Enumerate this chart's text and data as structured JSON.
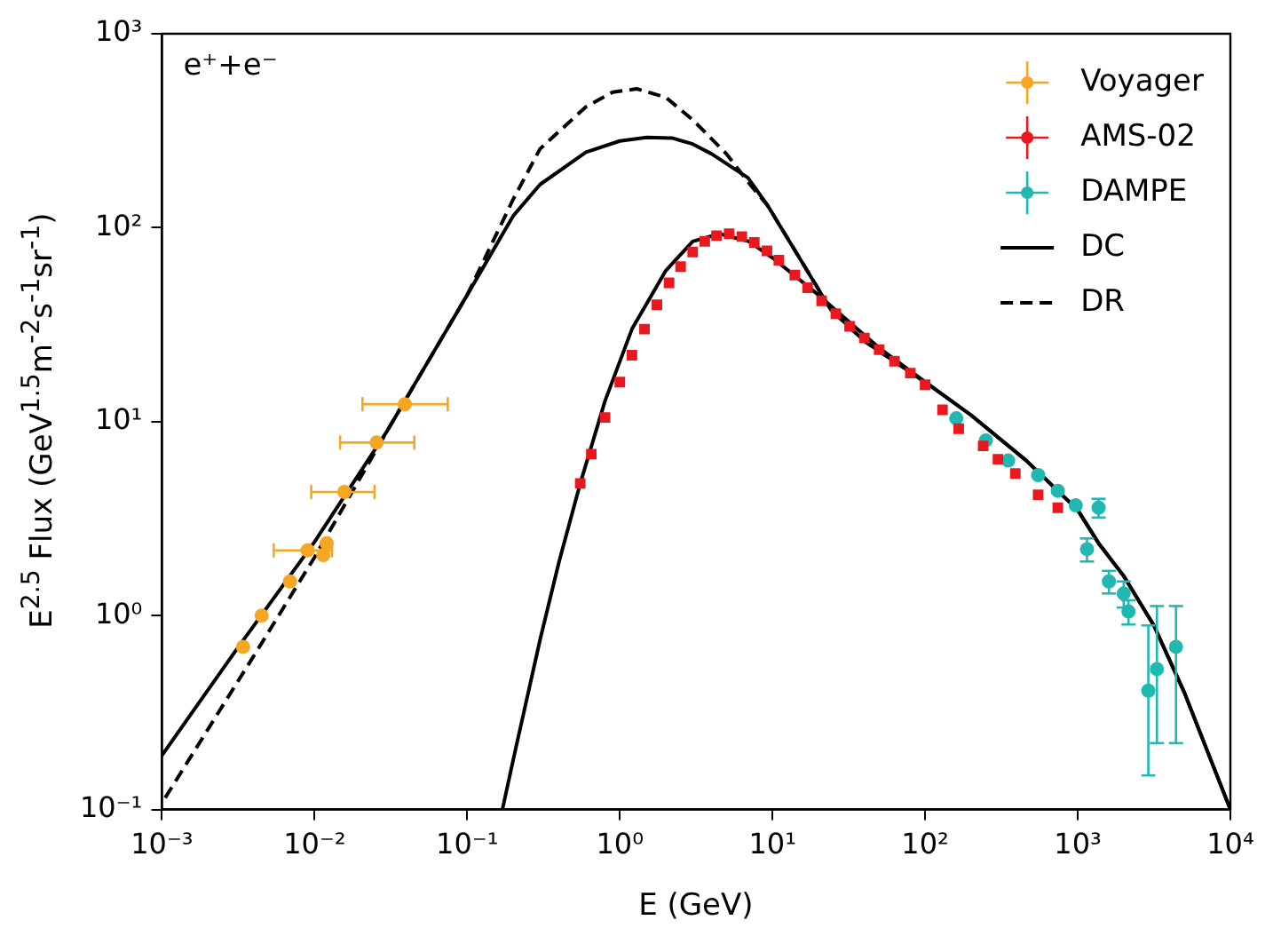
{
  "chart_data": {
    "type": "scatter",
    "xlabel": "E (GeV)",
    "ylabel": "E$^{2.5}$ Flux (GeV$^{1.5}$m$^{-2}$s$^{-1}$sr$^{-1}$)",
    "log": "xy",
    "legend": "top right",
    "annotations": [
      "e⁺+e⁻"
    ],
    "xlim": [
      0.001,
      10000
    ],
    "xticks": [
      {
        "value": 0.001,
        "label": "10⁻³"
      },
      {
        "value": 0.01,
        "label": "10⁻²"
      },
      {
        "value": 0.1,
        "label": "10⁻¹"
      },
      {
        "value": 1,
        "label": "10⁰"
      },
      {
        "value": 10,
        "label": "10¹"
      },
      {
        "value": 100,
        "label": "10²"
      },
      {
        "value": 1000,
        "label": "10³"
      },
      {
        "value": 10000,
        "label": "10⁴"
      }
    ],
    "ylim": [
      0.1,
      1000
    ],
    "yticks": [
      {
        "value": 0.1,
        "label": "10⁻¹"
      },
      {
        "value": 1,
        "label": "10⁰"
      },
      {
        "value": 10,
        "label": "10¹"
      },
      {
        "value": 100,
        "label": "10²"
      },
      {
        "value": 1000,
        "label": "10³"
      }
    ],
    "series": [
      {
        "name": "Voyager",
        "marker": "circle",
        "color": "#f5a623",
        "x": [
          0.0034,
          0.0045,
          0.0069,
          0.009,
          0.0114,
          0.012,
          0.0157,
          0.0255,
          0.039
        ],
        "values": [
          0.69,
          1.0,
          1.5,
          2.17,
          2.05,
          2.36,
          4.34,
          7.8,
          12.3
        ],
        "xerrors": [
          null,
          null,
          null,
          [
            0.0054,
            0.013
          ],
          null,
          null,
          [
            0.0095,
            0.0247
          ],
          [
            0.0147,
            0.045
          ],
          [
            0.0206,
            0.0746
          ]
        ]
      },
      {
        "name": "AMS-02",
        "marker": "square",
        "color": "#e8191e",
        "x": [
          0.55,
          0.65,
          0.8,
          1.0,
          1.2,
          1.45,
          1.75,
          2.1,
          2.5,
          3,
          3.6,
          4.3,
          5.2,
          6.3,
          7.6,
          9.2,
          11,
          14,
          17,
          21,
          26,
          32,
          40,
          50,
          63,
          80,
          100,
          130,
          166,
          240,
          300,
          390,
          550,
          740
        ],
        "values": [
          4.8,
          6.8,
          10.5,
          16,
          22,
          30,
          40,
          52,
          63,
          75,
          85,
          91,
          93,
          90,
          84,
          76,
          68,
          57,
          49,
          42,
          36,
          31,
          27,
          23.5,
          20.5,
          17.8,
          15.5,
          11.5,
          9.2,
          7.5,
          6.4,
          5.4,
          4.2,
          3.6
        ]
      },
      {
        "name": "DAMPE",
        "marker": "circle",
        "color": "#20b8b0",
        "x": [
          160,
          250,
          350,
          550,
          740,
          970,
          1150,
          1370,
          1600,
          2000,
          2150,
          2900,
          3300,
          4400
        ],
        "values": [
          10.4,
          8,
          6.3,
          5.3,
          4.4,
          3.7,
          2.2,
          3.6,
          1.5,
          1.3,
          1.05,
          0.41,
          0.53,
          0.69
        ],
        "errors": [
          null,
          null,
          null,
          null,
          null,
          null,
          [
            1.9,
            2.5
          ],
          [
            3.2,
            4.0
          ],
          [
            1.3,
            1.7
          ],
          [
            1.1,
            1.5
          ],
          [
            0.9,
            1.2
          ],
          [
            0.15,
            0.89
          ],
          [
            0.22,
            1.12
          ],
          [
            0.22,
            1.12
          ]
        ]
      },
      {
        "name": "DC",
        "type": "line",
        "line_style": "solid",
        "color": "#000000",
        "x": [
          0.001,
          0.003,
          0.01,
          0.03,
          0.1,
          0.2,
          0.3,
          0.6,
          1,
          1.5,
          2.2,
          3,
          4,
          6.9,
          9.3,
          15,
          24,
          40,
          100,
          200,
          460,
          1000,
          1380,
          2000,
          3150,
          5000,
          10000
        ],
        "values": [
          0.19,
          0.65,
          2.4,
          9,
          45,
          115,
          167,
          245,
          280,
          292,
          290,
          270,
          240,
          181,
          130,
          70,
          38,
          26,
          16,
          10.8,
          6.3,
          3.5,
          2.34,
          1.6,
          0.89,
          0.4,
          0.1
        ]
      },
      {
        "type": "line",
        "line_style": "solid",
        "color": "#000000",
        "x": [
          0.17,
          0.2,
          0.3,
          0.4,
          0.55,
          0.8,
          1.2,
          2,
          3,
          4.5,
          7,
          10,
          20,
          30,
          50,
          100,
          200,
          460,
          1000,
          1380,
          2000,
          3150,
          5000,
          10000
        ],
        "values": [
          0.1,
          0.18,
          0.75,
          1.9,
          4.8,
          12.8,
          30,
          60,
          85,
          93,
          85,
          70,
          45,
          34,
          24,
          16,
          10.8,
          6.3,
          3.5,
          2.34,
          1.6,
          0.89,
          0.4,
          0.1
        ]
      },
      {
        "name": "DR",
        "type": "line",
        "line_style": "dashed",
        "color": "#000000",
        "x": [
          0.00105,
          0.0042,
          0.01,
          0.03,
          0.1,
          0.2,
          0.3,
          0.6,
          0.9,
          1.29,
          2,
          3,
          5,
          7,
          9.3,
          15,
          24,
          40,
          100
        ],
        "values": [
          0.115,
          0.66,
          2.0,
          9,
          45,
          140,
          255,
          420,
          500,
          520,
          470,
          360,
          240,
          170,
          130,
          70,
          38,
          26,
          16
        ]
      }
    ]
  }
}
